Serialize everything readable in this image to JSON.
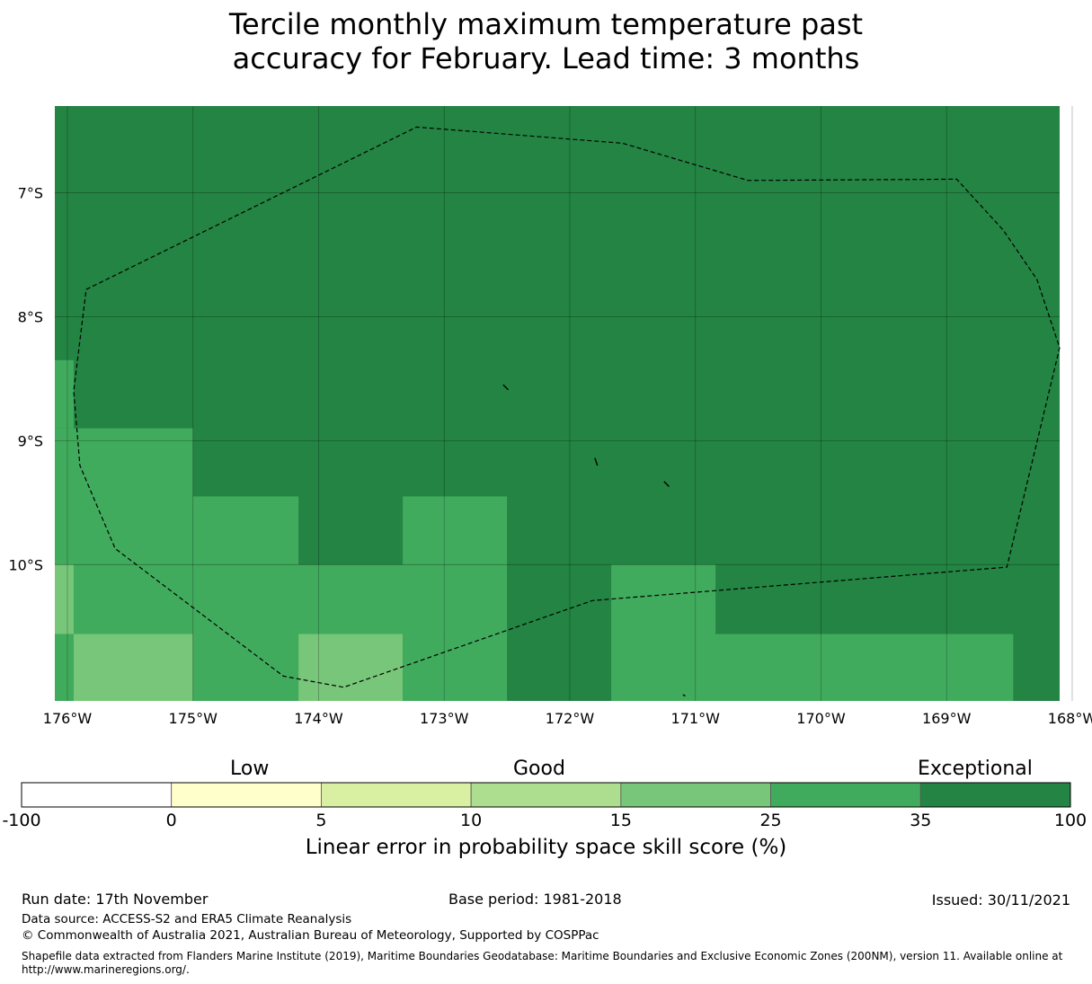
{
  "title": {
    "line1": "Tercile monthly maximum temperature past",
    "line2": "accuracy for February. Lead time: 3 months"
  },
  "map": {
    "lon_range": [
      -176.1,
      -168.1
    ],
    "lat_range": [
      -11.1,
      -6.3
    ],
    "lon_ticks": [
      {
        "value": -176,
        "label": "176°W"
      },
      {
        "value": -175,
        "label": "175°W"
      },
      {
        "value": -174,
        "label": "174°W"
      },
      {
        "value": -173,
        "label": "173°W"
      },
      {
        "value": -172,
        "label": "172°W"
      },
      {
        "value": -171,
        "label": "171°W"
      },
      {
        "value": -170,
        "label": "170°W"
      },
      {
        "value": -169,
        "label": "169°W"
      },
      {
        "value": -168,
        "label": "168°W"
      }
    ],
    "lat_ticks": [
      {
        "value": -7,
        "label": "7°S"
      },
      {
        "value": -8,
        "label": "8°S"
      },
      {
        "value": -9,
        "label": "9°S"
      },
      {
        "value": -10,
        "label": "10°S"
      }
    ],
    "background_class": "35-100",
    "cells": [
      {
        "lon": [
          -176.1,
          -175.95
        ],
        "lat": [
          -8.9,
          -8.35
        ],
        "class": "25-35"
      },
      {
        "lon": [
          -176.1,
          -175.0
        ],
        "lat": [
          -10.0,
          -8.9
        ],
        "class": "25-35"
      },
      {
        "lon": [
          -175.0,
          -174.16
        ],
        "lat": [
          -10.0,
          -9.45
        ],
        "class": "25-35"
      },
      {
        "lon": [
          -173.33,
          -172.5
        ],
        "lat": [
          -10.0,
          -9.45
        ],
        "class": "25-35"
      },
      {
        "lon": [
          -176.1,
          -175.95
        ],
        "lat": [
          -10.56,
          -10.0
        ],
        "class": "15-25"
      },
      {
        "lon": [
          -175.95,
          -172.5
        ],
        "lat": [
          -10.56,
          -10.0
        ],
        "class": "25-35"
      },
      {
        "lon": [
          -171.67,
          -170.84
        ],
        "lat": [
          -10.56,
          -10.0
        ],
        "class": "25-35"
      },
      {
        "lon": [
          -176.1,
          -175.95
        ],
        "lat": [
          -11.1,
          -10.56
        ],
        "class": "25-35"
      },
      {
        "lon": [
          -175.95,
          -175.0
        ],
        "lat": [
          -11.1,
          -10.56
        ],
        "class": "15-25"
      },
      {
        "lon": [
          -175.0,
          -174.16
        ],
        "lat": [
          -11.1,
          -10.56
        ],
        "class": "25-35"
      },
      {
        "lon": [
          -174.16,
          -173.33
        ],
        "lat": [
          -11.1,
          -10.56
        ],
        "class": "15-25"
      },
      {
        "lon": [
          -173.33,
          -172.5
        ],
        "lat": [
          -11.1,
          -10.56
        ],
        "class": "25-35"
      },
      {
        "lon": [
          -171.67,
          -168.47
        ],
        "lat": [
          -11.1,
          -10.56
        ],
        "class": "25-35"
      }
    ],
    "eez_boundary": [
      [
        -175.85,
        -7.78
      ],
      [
        -173.22,
        -6.47
      ],
      [
        -171.58,
        -6.6
      ],
      [
        -170.58,
        -6.9
      ],
      [
        -168.92,
        -6.89
      ],
      [
        -168.55,
        -7.3
      ],
      [
        -168.28,
        -7.7
      ],
      [
        -168.1,
        -8.25
      ],
      [
        -168.52,
        -10.02
      ],
      [
        -171.82,
        -10.29
      ],
      [
        -173.8,
        -10.99
      ],
      [
        -174.28,
        -10.9
      ],
      [
        -175.62,
        -9.87
      ],
      [
        -175.9,
        -9.2
      ],
      [
        -175.95,
        -8.6
      ],
      [
        -175.85,
        -7.78
      ]
    ],
    "islands": [
      [
        [
          -172.53,
          -8.55
        ],
        [
          -172.49,
          -8.59
        ]
      ],
      [
        [
          -171.8,
          -9.14
        ],
        [
          -171.78,
          -9.2
        ]
      ],
      [
        [
          -171.25,
          -9.33
        ],
        [
          -171.21,
          -9.37
        ]
      ],
      [
        [
          -171.1,
          -11.05
        ],
        [
          -171.08,
          -11.06
        ]
      ]
    ]
  },
  "colorbar": {
    "words": [
      "Low",
      "Good",
      "Exceptional"
    ],
    "classes": [
      {
        "key": "-100-0",
        "color": "#ffffff"
      },
      {
        "key": "0-5",
        "color": "#ffffcc"
      },
      {
        "key": "5-10",
        "color": "#d9f0a3"
      },
      {
        "key": "10-15",
        "color": "#addd8e"
      },
      {
        "key": "15-25",
        "color": "#78c679"
      },
      {
        "key": "25-35",
        "color": "#41ab5d"
      },
      {
        "key": "35-100",
        "color": "#238443"
      }
    ],
    "ticks": [
      "-100",
      "0",
      "5",
      "10",
      "15",
      "25",
      "35",
      "100"
    ],
    "label": "Linear error in probability space skill score (%)"
  },
  "footer": {
    "run_date": "Run date: 17th November",
    "base_period": "Base period: 1981-2018",
    "issued": "Issued: 30/11/2021",
    "data_source": "Data source: ACCESS-S2 and ERA5 Climate Reanalysis",
    "copyright": "© Commonwealth of Australia 2021, Australian Bureau of Meteorology, Supported by COSPPac",
    "shapefile": "Shapefile data extracted from Flanders Marine Institute (2019), Maritime Boundaries Geodatabase: Maritime Boundaries and Exclusive Economic Zones (200NM), version 11. Available online at http://www.marineregions.org/."
  }
}
